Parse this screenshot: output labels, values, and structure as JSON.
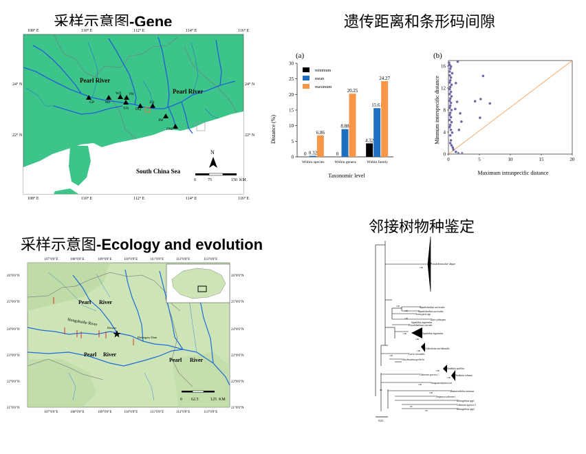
{
  "headings": {
    "gene_cn": "采样示意图",
    "gene_en": "-Gene",
    "barcode": "遗传距离和条形码间隙",
    "eco_cn": "采样示意图",
    "eco_en": "-Ecology and evolution",
    "nj": "邻接树物种鉴定"
  },
  "map_gene": {
    "lon_ticks": [
      "108° E",
      "110° E",
      "112° E",
      "114° E",
      "116° E"
    ],
    "lat_ticks": [
      "24° N",
      "22° N"
    ],
    "river_labels": [
      "Pearl River",
      "Pearl River"
    ],
    "sea_label": "South China Sea",
    "sites": [
      "GP",
      "MJ",
      "WZ",
      "FK",
      "YN",
      "DQ",
      "ZQ",
      "JM",
      "DM"
    ],
    "north": "N",
    "scale": [
      "0",
      "75",
      "150",
      "KM"
    ],
    "colors": {
      "land": "#3cc48a",
      "sea": "#ffffff",
      "river": "#1f5fd6"
    }
  },
  "map_eco": {
    "lon_ticks": [
      "107°0'0\"E",
      "108°0'0\"E",
      "109°0'0\"E",
      "110°0'0\"E",
      "111°0'0\"E",
      "112°0'0\"E",
      "113°0'0\"E"
    ],
    "lat_ticks": [
      "26°0'0\"N",
      "25°0'0\"N",
      "24°0'0\"N",
      "23°0'0\"N",
      "22°0'0\"N",
      "21°0'0\"N"
    ],
    "labels": [
      "Pearl",
      "River",
      "Hongshuihe River",
      "Pearl",
      "River",
      "Pearl",
      "River",
      "Dawan",
      "Datengxia Dam"
    ],
    "scale": [
      "0",
      "62.5",
      "125",
      "KM"
    ],
    "colors": {
      "land": "#cde4b6",
      "river": "#1f6ad6",
      "dam": "#d6352b"
    }
  },
  "chart_a": {
    "panel_label": "(a)",
    "legend": [
      "minimum",
      "mean",
      "maximum"
    ]
  },
  "chart_b": {
    "panel_label": "(b)"
  },
  "chart_data": [
    {
      "type": "bar",
      "title": "",
      "categories": [
        "Within species",
        "Within genera",
        "Within family"
      ],
      "series": [
        {
          "name": "minimum",
          "values": [
            0,
            0,
            4.32
          ],
          "color": "#000000"
        },
        {
          "name": "mean",
          "values": [
            0.32,
            8.88,
            15.61
          ],
          "color": "#1f6fc1"
        },
        {
          "name": "maximum",
          "values": [
            6.86,
            20.25,
            24.27
          ],
          "color": "#f79646"
        }
      ],
      "value_labels": [
        [
          "0",
          "0.32",
          "6.86"
        ],
        [
          "0",
          "8.88",
          "20.25"
        ],
        [
          "4.32",
          "15.61",
          "24.27"
        ]
      ],
      "xlabel": "Taxonomic level",
      "ylabel": "Distance (%)",
      "ylim": [
        0,
        30
      ],
      "yticks": [
        "0",
        "5",
        "10",
        "15",
        "20",
        "25",
        "30"
      ],
      "legend_position": "top-left"
    },
    {
      "type": "scatter",
      "title": "",
      "xlabel": "Maximum intraspecific distance",
      "ylabel": "Minmum interspecific distance",
      "xlim": [
        0,
        20
      ],
      "ylim": [
        0,
        17
      ],
      "xticks": [
        "0",
        "5",
        "10",
        "15",
        "20"
      ],
      "yticks": [
        "0",
        "4",
        "8",
        "12",
        "16"
      ],
      "points": [
        [
          0.1,
          16.6
        ],
        [
          0.2,
          16.2
        ],
        [
          0.4,
          15.9
        ],
        [
          0.3,
          15.5
        ],
        [
          0.2,
          15.0
        ],
        [
          0.6,
          14.7
        ],
        [
          0.2,
          14.3
        ],
        [
          0.4,
          13.9
        ],
        [
          0.3,
          13.4
        ],
        [
          0.2,
          13.0
        ],
        [
          0.5,
          12.6
        ],
        [
          0.3,
          12.2
        ],
        [
          0.2,
          11.8
        ],
        [
          0.4,
          11.3
        ],
        [
          0.2,
          10.9
        ],
        [
          0.5,
          10.5
        ],
        [
          0.3,
          10.1
        ],
        [
          0.2,
          9.7
        ],
        [
          0.4,
          9.3
        ],
        [
          0.3,
          8.8
        ],
        [
          0.2,
          8.4
        ],
        [
          0.5,
          8.0
        ],
        [
          0.3,
          7.5
        ],
        [
          0.2,
          7.1
        ],
        [
          0.4,
          6.7
        ],
        [
          0.2,
          6.2
        ],
        [
          0.5,
          5.8
        ],
        [
          0.3,
          5.3
        ],
        [
          0.2,
          4.9
        ],
        [
          0.4,
          4.4
        ],
        [
          0.6,
          3.9
        ],
        [
          0.3,
          3.4
        ],
        [
          0.4,
          2.5
        ],
        [
          0.3,
          2.0
        ],
        [
          0.5,
          1.6
        ],
        [
          0.7,
          1.2
        ],
        [
          0.8,
          0.8
        ],
        [
          1.5,
          16.8
        ],
        [
          1.2,
          12.9
        ],
        [
          1.4,
          9.5
        ],
        [
          1.1,
          8.2
        ],
        [
          1.9,
          7.4
        ],
        [
          2.1,
          5.9
        ],
        [
          1.7,
          4.4
        ],
        [
          5.6,
          14.2
        ],
        [
          5.2,
          10.0
        ],
        [
          6.7,
          9.2
        ],
        [
          5.1,
          6.6
        ],
        [
          4.3,
          9.6
        ],
        [
          1.2,
          0.4
        ]
      ],
      "triangles": [
        [
          1.6,
          0.1
        ],
        [
          2.2,
          0.1
        ]
      ],
      "colors": {
        "points": "#6f6aa3",
        "diagonal": "#f4a261"
      }
    }
  ],
  "tree": {
    "taxa": [
      "Pseudohemiculter dispar",
      "Squalidus argentatus",
      "Squaliobarbus curriculus",
      "Squaliobarbus curriculus",
      "Xenocypris spp",
      "Zacco platypus",
      "Pseudolaubuca sinensis",
      "Squalidus argentatus",
      "Gobiobotia meridionalis",
      "Garra orientalis",
      "Onychostoma gerlachi",
      "Sinibotia pulchra",
      "Sinibotia robusta",
      "Unknown species 1",
      "Sinogastromyzon wui",
      "Mastacembelus armatus",
      "Siniperca scherzeri",
      "Rhinogobius spp1",
      "Unknown species 2",
      "Rhinogobius spp2"
    ],
    "bootstrap": [
      "100",
      "100",
      "100",
      "100",
      "100",
      "100",
      "100",
      "100",
      "100",
      "100",
      "96",
      "100",
      "100",
      "99",
      "96"
    ],
    "scale": "0.02"
  }
}
